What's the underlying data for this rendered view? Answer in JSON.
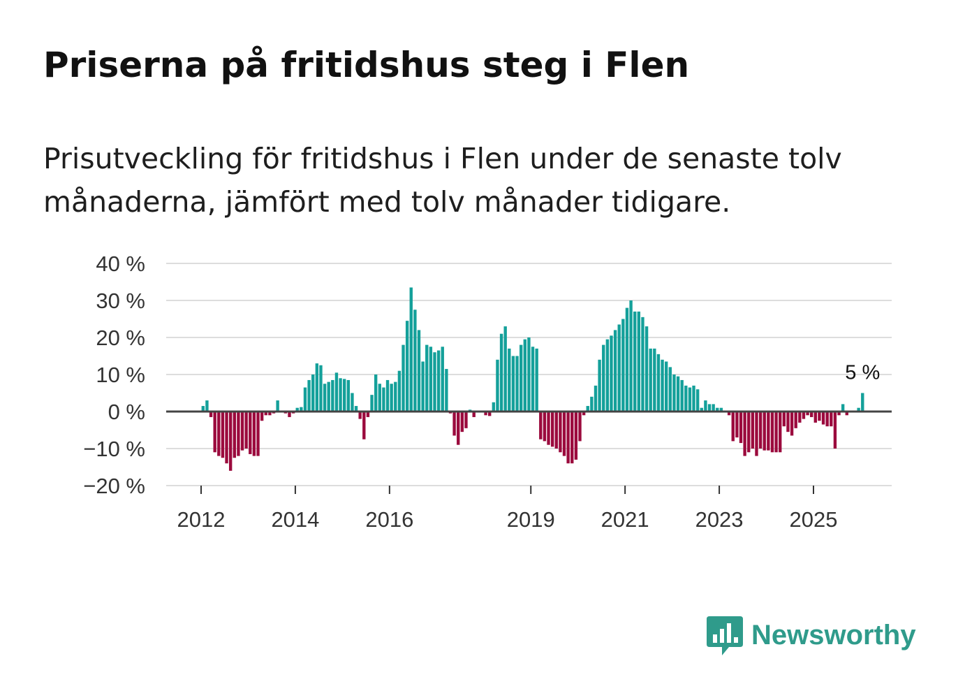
{
  "title": "Priserna på fritidshus steg i Flen",
  "subtitle": "Prisutveckling för fritidshus i Flen under de senaste tolv månaderna, jämfört med tolv månader tidigare.",
  "brand": {
    "name": "Newsworthy",
    "icon": "newsworthy-logo-icon"
  },
  "colors": {
    "positive": "#14a09a",
    "negative": "#9b0a3d",
    "grid": "#dddddd",
    "zero": "#444444",
    "brand": "#2f9b8b"
  },
  "chart_data": {
    "type": "bar",
    "ylabel": "",
    "xlabel": "",
    "ylim": [
      -20,
      40
    ],
    "yticks": [
      40,
      30,
      20,
      10,
      0,
      -10,
      -20
    ],
    "ytick_labels": [
      "40 %",
      "30 %",
      "20 %",
      "10 %",
      "0 %",
      "−10 %",
      "−20 %"
    ],
    "x_start": 2011.5,
    "x_end": 2026.9,
    "xticks": [
      2012,
      2014,
      2016,
      2019,
      2021,
      2023,
      2025
    ],
    "xtick_labels": [
      "2012",
      "2014",
      "2016",
      "2019",
      "2021",
      "2023",
      "2025"
    ],
    "annotation": {
      "label": "5 %",
      "value": 5
    },
    "series": [
      {
        "name": "2012",
        "start": 2012.0,
        "values": [
          1.5,
          3,
          -1.5,
          -11,
          -12,
          -12.5,
          -14,
          -16,
          -12.5,
          -12,
          -10.5,
          -10
        ]
      },
      {
        "name": "2013",
        "start": 2013.0,
        "values": [
          -11.5,
          -12,
          -12,
          -2.5,
          -1,
          -1,
          -0.5,
          3,
          0,
          -0.5,
          -1.5,
          -0.5
        ]
      },
      {
        "name": "2014",
        "start": 2014.0,
        "values": [
          1,
          1.2,
          6.5,
          8.5,
          10,
          13,
          12.5,
          7.5,
          8,
          8.5,
          10.5,
          9
        ]
      },
      {
        "name": "2015",
        "start": 2015.0,
        "values": [
          8.8,
          8.5,
          5,
          1.5,
          -2,
          -7.5,
          -1.5,
          4.5,
          10,
          7.5,
          6.5,
          8.5
        ]
      },
      {
        "name": "2016",
        "start": 2016.0,
        "values": [
          7.5,
          8,
          11,
          18,
          24.5,
          33.5,
          27.5,
          22,
          13.5,
          18,
          17.5,
          16
        ]
      },
      {
        "name": "2017",
        "start": 2017.0,
        "values": [
          16.5,
          17.5,
          11.5,
          -0.5,
          -6.5,
          -9,
          -5.5,
          -4.5,
          0.5,
          -1.5,
          0,
          0
        ]
      },
      {
        "name": "2018",
        "start": 2018.0,
        "values": [
          -1,
          -1.2,
          2.5,
          14,
          21,
          23,
          17,
          15,
          15,
          18,
          19.5,
          20
        ]
      },
      {
        "name": "2019",
        "start": 2019.0,
        "values": [
          17.5,
          17,
          -7.5,
          -8,
          -9,
          -9.5,
          -10,
          -11,
          -12,
          -14,
          -14,
          -13
        ]
      },
      {
        "name": "2020",
        "start": 2020.0,
        "values": [
          -8,
          -1,
          1.5,
          4,
          7,
          14,
          18,
          19.5,
          20.5,
          22,
          23.5,
          25
        ]
      },
      {
        "name": "2021",
        "start": 2021.0,
        "values": [
          28,
          30,
          27,
          27,
          25.5,
          23,
          17,
          17,
          15.5,
          14,
          13.5,
          12
        ]
      },
      {
        "name": "2022",
        "start": 2022.0,
        "values": [
          10,
          9.5,
          8.5,
          7,
          6.5,
          7,
          6,
          1,
          3,
          2,
          2,
          1
        ]
      },
      {
        "name": "2023",
        "start": 2023.0,
        "values": [
          1,
          0,
          -1,
          -8,
          -7,
          -8.5,
          -12,
          -11,
          -10,
          -12,
          -10,
          -10.5
        ]
      },
      {
        "name": "2024",
        "start": 2024.0,
        "values": [
          -10.5,
          -11,
          -11,
          -11,
          -4,
          -5.5,
          -6.5,
          -4.5,
          -3,
          -2,
          -1,
          -1.5
        ]
      },
      {
        "name": "2025",
        "start": 2025.0,
        "values": [
          -3,
          -2.5,
          -3.5,
          -4,
          -4,
          -10,
          -1,
          2,
          -1,
          0,
          0,
          1
        ]
      },
      {
        "name": "2026",
        "start": 2026.0,
        "values": [
          5
        ]
      }
    ]
  }
}
